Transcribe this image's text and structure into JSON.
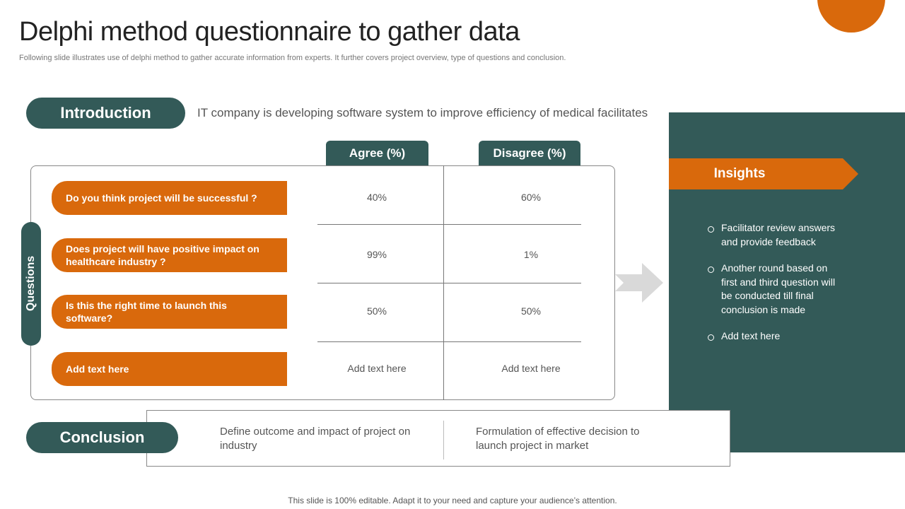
{
  "header": {
    "title": "Delphi method questionnaire to gather data",
    "subtitle": "Following slide illustrates use of delphi method to gather accurate information from experts. It further covers project overview, type of questions and conclusion."
  },
  "introduction": {
    "label": "Introduction",
    "text": "IT company is developing software system to improve efficiency of medical facilitates"
  },
  "table": {
    "headers": [
      "Agree (%)",
      "Disagree (%)"
    ],
    "side_label": "Questions",
    "rows": [
      [
        "Do you think project will be successful ?",
        "40%",
        "60%"
      ],
      [
        "Does project will have positive impact on healthcare industry ?",
        "99%",
        "1%"
      ],
      [
        "Is this the right time to launch this software?",
        "50%",
        "50%"
      ],
      [
        "Add text here",
        "Add text here",
        "Add text here"
      ]
    ]
  },
  "insights": {
    "title": "Insights",
    "bullets": [
      "Facilitator  review answers and provide feedback",
      "Another round based on first and third question will be conducted till final conclusion is made",
      "Add text here"
    ]
  },
  "conclusion": {
    "label": "Conclusion",
    "items": [
      "Define outcome and impact of project on industry",
      "Formulation of effective decision to launch project in market"
    ]
  },
  "footer": "This slide is 100% editable. Adapt it to your need and capture your audience’s attention."
}
